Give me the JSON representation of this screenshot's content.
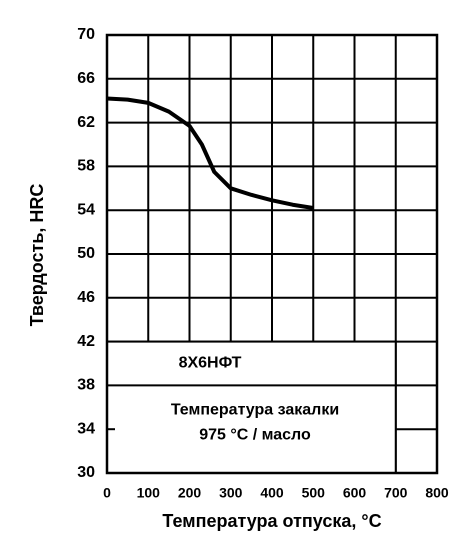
{
  "chart_data": {
    "type": "line",
    "xlabel": "Температура отпуска, °С",
    "ylabel": "Твердость, HRC",
    "annotations": [
      "8Х6НФТ",
      "Температура закалки",
      "975 °С / масло"
    ],
    "x": [
      0,
      50,
      100,
      150,
      200,
      230,
      260,
      300,
      350,
      400,
      450,
      500
    ],
    "values": [
      64.2,
      64.1,
      63.8,
      63.0,
      61.7,
      60.0,
      57.5,
      56.0,
      55.4,
      54.9,
      54.5,
      54.2
    ],
    "color": "#000000",
    "xlim": [
      0,
      800
    ],
    "xticks": [
      0,
      100,
      200,
      300,
      400,
      500,
      600,
      700,
      800
    ],
    "ylim": [
      30,
      70
    ],
    "yticks": [
      30,
      34,
      38,
      42,
      46,
      50,
      54,
      58,
      62,
      66,
      70
    ],
    "grid": true
  }
}
